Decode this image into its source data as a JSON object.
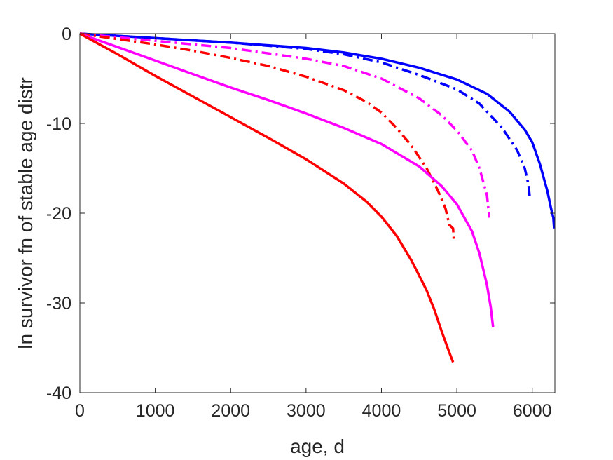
{
  "chart_data": {
    "type": "line",
    "title": "",
    "xlabel": "age, d",
    "ylabel": "ln survivor fn of stable age distr",
    "xlim": [
      0,
      6300
    ],
    "ylim": [
      -40,
      0
    ],
    "xticks": [
      0,
      1000,
      2000,
      3000,
      4000,
      5000,
      6000
    ],
    "yticks": [
      0,
      -10,
      -20,
      -30,
      -40
    ],
    "xtick_labels": [
      "0",
      "1000",
      "2000",
      "3000",
      "4000",
      "5000",
      "6000"
    ],
    "ytick_labels": [
      "0",
      "-10",
      "-20",
      "-30",
      "-40"
    ],
    "grid": false,
    "legend": "none",
    "series": [
      {
        "color": "#0000ff",
        "dash": "solid",
        "points": [
          [
            0,
            0
          ],
          [
            1000,
            -0.5
          ],
          [
            2000,
            -1.0
          ],
          [
            3000,
            -1.6
          ],
          [
            3500,
            -2.1
          ],
          [
            4000,
            -2.8
          ],
          [
            4500,
            -3.8
          ],
          [
            5000,
            -5.1
          ],
          [
            5400,
            -6.7
          ],
          [
            5700,
            -8.7
          ],
          [
            5900,
            -10.7
          ],
          [
            6000,
            -12.1
          ],
          [
            6100,
            -14.5
          ],
          [
            6200,
            -17.5
          ],
          [
            6250,
            -19.5
          ],
          [
            6280,
            -20.5
          ],
          [
            6290,
            -21.7
          ]
        ]
      },
      {
        "color": "#0000ff",
        "dash": "dashdot",
        "points": [
          [
            0,
            0
          ],
          [
            1000,
            -0.5
          ],
          [
            2000,
            -1.0
          ],
          [
            3000,
            -1.7
          ],
          [
            3500,
            -2.3
          ],
          [
            4000,
            -3.2
          ],
          [
            4500,
            -4.6
          ],
          [
            5000,
            -6.2
          ],
          [
            5300,
            -7.8
          ],
          [
            5600,
            -10.5
          ],
          [
            5800,
            -13.0
          ],
          [
            5900,
            -15.0
          ],
          [
            5950,
            -16.8
          ],
          [
            5970,
            -18.5
          ]
        ]
      },
      {
        "color": "#ff00ff",
        "dash": "dashdot",
        "points": [
          [
            0,
            0
          ],
          [
            1000,
            -0.8
          ],
          [
            2000,
            -1.6
          ],
          [
            3000,
            -2.8
          ],
          [
            3500,
            -3.6
          ],
          [
            4000,
            -5.0
          ],
          [
            4500,
            -7.2
          ],
          [
            4800,
            -9.1
          ],
          [
            5000,
            -10.8
          ],
          [
            5200,
            -13.0
          ],
          [
            5300,
            -15.0
          ],
          [
            5400,
            -18.0
          ],
          [
            5430,
            -20.5
          ]
        ]
      },
      {
        "color": "#ff0000",
        "dash": "dashdot",
        "points": [
          [
            0,
            0
          ],
          [
            500,
            -0.6
          ],
          [
            1000,
            -1.2
          ],
          [
            1500,
            -1.9
          ],
          [
            2000,
            -2.7
          ],
          [
            2500,
            -3.6
          ],
          [
            3000,
            -4.8
          ],
          [
            3500,
            -6.3
          ],
          [
            3800,
            -7.6
          ],
          [
            4000,
            -8.8
          ],
          [
            4200,
            -10.5
          ],
          [
            4400,
            -12.5
          ],
          [
            4600,
            -15.0
          ],
          [
            4750,
            -17.5
          ],
          [
            4850,
            -19.5
          ],
          [
            4900,
            -21.3
          ],
          [
            4950,
            -21.7
          ],
          [
            4960,
            -23.0
          ]
        ]
      },
      {
        "color": "#ff00ff",
        "dash": "solid",
        "points": [
          [
            0,
            0
          ],
          [
            500,
            -1.5
          ],
          [
            1000,
            -3.0
          ],
          [
            1500,
            -4.5
          ],
          [
            2000,
            -6.0
          ],
          [
            2500,
            -7.4
          ],
          [
            3000,
            -8.9
          ],
          [
            3500,
            -10.5
          ],
          [
            4000,
            -12.3
          ],
          [
            4500,
            -14.8
          ],
          [
            4800,
            -17.0
          ],
          [
            5000,
            -19.0
          ],
          [
            5200,
            -22.0
          ],
          [
            5300,
            -24.5
          ],
          [
            5400,
            -28.0
          ],
          [
            5450,
            -30.5
          ],
          [
            5480,
            -32.7
          ]
        ]
      },
      {
        "color": "#ff0000",
        "dash": "solid",
        "points": [
          [
            0,
            0
          ],
          [
            500,
            -2.3
          ],
          [
            1000,
            -4.7
          ],
          [
            1500,
            -7.0
          ],
          [
            2000,
            -9.3
          ],
          [
            2500,
            -11.6
          ],
          [
            3000,
            -14.0
          ],
          [
            3500,
            -16.7
          ],
          [
            3800,
            -18.7
          ],
          [
            4000,
            -20.4
          ],
          [
            4200,
            -22.5
          ],
          [
            4400,
            -25.3
          ],
          [
            4600,
            -28.6
          ],
          [
            4700,
            -30.7
          ],
          [
            4800,
            -33.2
          ],
          [
            4900,
            -35.5
          ],
          [
            4950,
            -36.6
          ]
        ]
      }
    ]
  }
}
